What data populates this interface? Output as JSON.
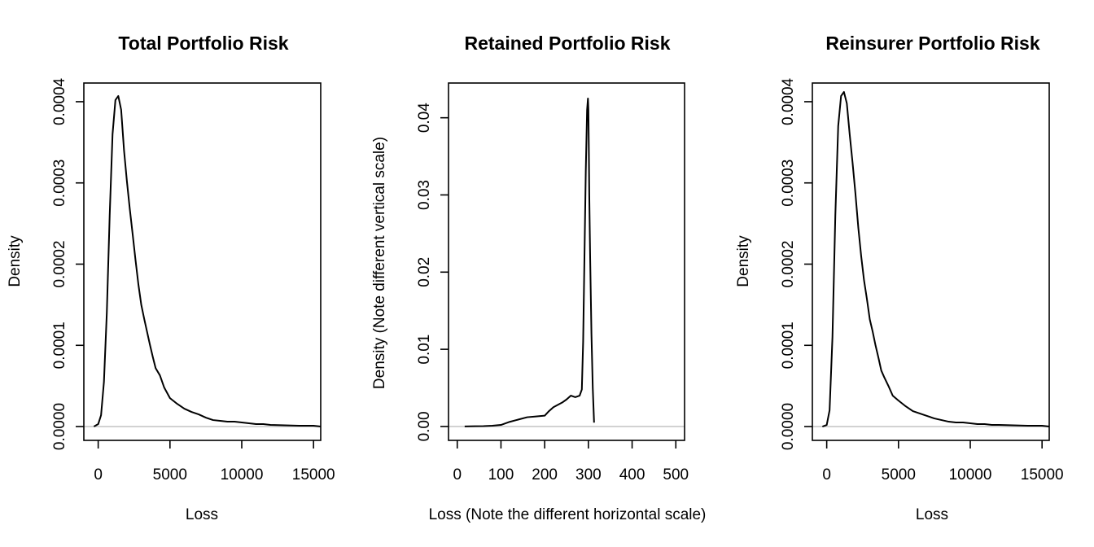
{
  "chart_data": [
    {
      "type": "line",
      "title": "Total Portfolio Risk",
      "xlabel": "Loss",
      "ylabel": "Density",
      "xlim": [
        -1000,
        15500
      ],
      "ylim": [
        -1.7e-05,
        0.000423
      ],
      "xticks": [
        0,
        5000,
        10000,
        15000
      ],
      "xtick_labels": [
        "0",
        "5000",
        "10000",
        "15000"
      ],
      "yticks": [
        0,
        0.0001,
        0.0002,
        0.0003,
        0.0004
      ],
      "ytick_labels": [
        "0.0000",
        "0.0001",
        "0.0002",
        "0.0003",
        "0.0004"
      ],
      "zero_line": true,
      "series": [
        {
          "name": "density",
          "x": [
            -300,
            0,
            200,
            400,
            600,
            800,
            1000,
            1200,
            1400,
            1600,
            1800,
            2000,
            2200,
            2400,
            2600,
            2800,
            3000,
            3200,
            3400,
            3600,
            3800,
            4000,
            4300,
            4600,
            5000,
            5500,
            6000,
            6500,
            7000,
            7500,
            8000,
            8500,
            9000,
            9500,
            10000,
            10500,
            11000,
            11500,
            12000,
            13000,
            14000,
            15000,
            15500
          ],
          "y": [
            0,
            3e-06,
            1.4e-05,
            5.5e-05,
            0.00014,
            0.00026,
            0.00036,
            0.000402,
            0.000407,
            0.00039,
            0.00034,
            0.000302,
            0.000268,
            0.000237,
            0.000205,
            0.000175,
            0.00015,
            0.000133,
            0.000117,
            0.000101,
            8.6e-05,
            7.2e-05,
            6.3e-05,
            4.8e-05,
            3.5e-05,
            2.8e-05,
            2.2e-05,
            1.8e-05,
            1.5e-05,
            1.1e-05,
            8e-06,
            7e-06,
            6e-06,
            6e-06,
            5e-06,
            4e-06,
            3e-06,
            3e-06,
            2e-06,
            1.5e-06,
            1e-06,
            1e-06,
            0
          ]
        }
      ]
    },
    {
      "type": "line",
      "title": "Retained Portfolio Risk",
      "xlabel": "Loss (Note the different horizontal scale)",
      "ylabel": "Density (Note different vertical scale)",
      "xlim": [
        -20,
        520
      ],
      "ylim": [
        -0.0018,
        0.0445
      ],
      "xticks": [
        0,
        100,
        200,
        300,
        400,
        500
      ],
      "xtick_labels": [
        "0",
        "100",
        "200",
        "300",
        "400",
        "500"
      ],
      "yticks": [
        0,
        0.01,
        0.02,
        0.03,
        0.04
      ],
      "ytick_labels": [
        "0.00",
        "0.01",
        "0.02",
        "0.03",
        "0.04"
      ],
      "zero_line": true,
      "series": [
        {
          "name": "density",
          "x": [
            17,
            40,
            60,
            80,
            100,
            120,
            140,
            160,
            180,
            200,
            210,
            220,
            240,
            250,
            260,
            270,
            280,
            285,
            288,
            291,
            294,
            297,
            299,
            300,
            301,
            302,
            304,
            307,
            310,
            313
          ],
          "y": [
            0,
            3e-05,
            5e-05,
            0.0001,
            0.0002,
            0.0006,
            0.0009,
            0.0012,
            0.0013,
            0.0014,
            0.002,
            0.0025,
            0.0031,
            0.0035,
            0.004,
            0.0038,
            0.004,
            0.0048,
            0.011,
            0.022,
            0.033,
            0.041,
            0.0425,
            0.041,
            0.036,
            0.03,
            0.022,
            0.012,
            0.005,
            0.0005
          ]
        }
      ]
    },
    {
      "type": "line",
      "title": "Reinsurer Portfolio Risk",
      "xlabel": "Loss",
      "ylabel": "Density",
      "xlim": [
        -1000,
        15500
      ],
      "ylim": [
        -1.7e-05,
        0.000423
      ],
      "xticks": [
        0,
        5000,
        10000,
        15000
      ],
      "xtick_labels": [
        "0",
        "5000",
        "10000",
        "15000"
      ],
      "yticks": [
        0,
        0.0001,
        0.0002,
        0.0003,
        0.0004
      ],
      "ytick_labels": [
        "0.0000",
        "0.0001",
        "0.0002",
        "0.0003",
        "0.0004"
      ],
      "zero_line": true,
      "series": [
        {
          "name": "density",
          "x": [
            -300,
            0,
            200,
            400,
            600,
            800,
            1000,
            1200,
            1400,
            1600,
            1800,
            2000,
            2200,
            2400,
            2600,
            2800,
            3000,
            3200,
            3400,
            3600,
            3800,
            4000,
            4300,
            4600,
            5000,
            5500,
            6000,
            6500,
            7000,
            7500,
            8000,
            8500,
            9000,
            9500,
            10000,
            10500,
            11000,
            11500,
            12000,
            13000,
            14000,
            15000,
            15500
          ],
          "y": [
            0,
            2e-06,
            2e-05,
            0.00011,
            0.00026,
            0.00037,
            0.000407,
            0.000412,
            0.000398,
            0.00036,
            0.000325,
            0.000287,
            0.000245,
            0.00021,
            0.00018,
            0.000157,
            0.000132,
            0.000117,
            0.0001,
            8.5e-05,
            6.9e-05,
            6.1e-05,
            5e-05,
            3.8e-05,
            3.2e-05,
            2.5e-05,
            1.9e-05,
            1.6e-05,
            1.3e-05,
            1e-05,
            8e-06,
            6e-06,
            5e-06,
            5e-06,
            4e-06,
            3e-06,
            3e-06,
            2e-06,
            2e-06,
            1.5e-06,
            1e-06,
            1e-06,
            0
          ]
        }
      ]
    }
  ]
}
